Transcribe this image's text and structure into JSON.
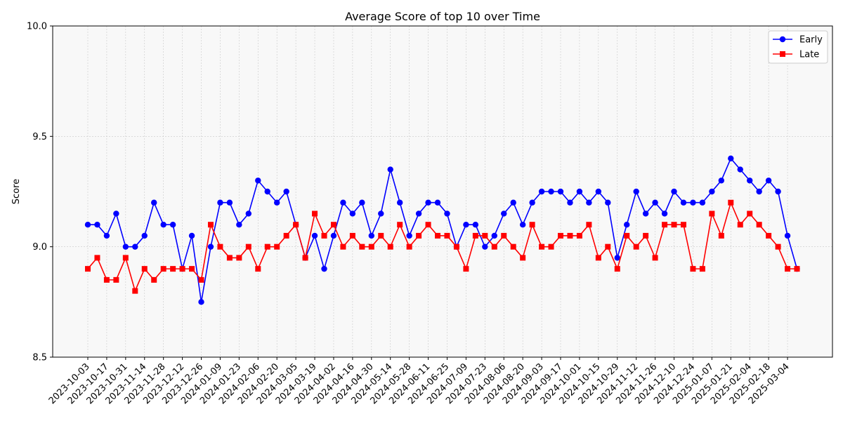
{
  "chart_data": {
    "type": "line",
    "title": "Average Score of top 10 over Time",
    "xlabel": "",
    "ylabel": "Score",
    "ylim": [
      8.5,
      10.0
    ],
    "yticks": [
      "8.5",
      "9.0",
      "9.5",
      "10.0"
    ],
    "grid": true,
    "legend_position": "top-right",
    "x": [
      "2023-10-03",
      "2023-10-10",
      "2023-10-17",
      "2023-10-24",
      "2023-10-31",
      "2023-11-07",
      "2023-11-14",
      "2023-11-21",
      "2023-11-28",
      "2023-12-05",
      "2023-12-12",
      "2023-12-19",
      "2023-12-26",
      "2024-01-02",
      "2024-01-09",
      "2024-01-16",
      "2024-01-23",
      "2024-01-30",
      "2024-02-06",
      "2024-02-13",
      "2024-02-20",
      "2024-02-27",
      "2024-03-05",
      "2024-03-12",
      "2024-03-19",
      "2024-03-26",
      "2024-04-02",
      "2024-04-09",
      "2024-04-16",
      "2024-04-23",
      "2024-04-30",
      "2024-05-07",
      "2024-05-14",
      "2024-05-21",
      "2024-05-28",
      "2024-06-04",
      "2024-06-11",
      "2024-06-18",
      "2024-06-25",
      "2024-07-02",
      "2024-07-09",
      "2024-07-16",
      "2024-07-23",
      "2024-07-30",
      "2024-08-06",
      "2024-08-13",
      "2024-08-20",
      "2024-08-27",
      "2024-09-03",
      "2024-09-10",
      "2024-09-17",
      "2024-09-24",
      "2024-10-01",
      "2024-10-08",
      "2024-10-15",
      "2024-10-22",
      "2024-10-29",
      "2024-11-05",
      "2024-11-12",
      "2024-11-19",
      "2024-11-26",
      "2024-12-03",
      "2024-12-10",
      "2024-12-17",
      "2024-12-24",
      "2024-12-31",
      "2025-01-07",
      "2025-01-14",
      "2025-01-21",
      "2025-01-28",
      "2025-02-04",
      "2025-02-11",
      "2025-02-18",
      "2025-02-25",
      "2025-03-04",
      "2025-03-11"
    ],
    "xtick_labels": [
      "2023-10-03",
      "2023-10-17",
      "2023-10-31",
      "2023-11-14",
      "2023-11-28",
      "2023-12-12",
      "2023-12-26",
      "2024-01-09",
      "2024-01-23",
      "2024-02-06",
      "2024-02-20",
      "2024-03-05",
      "2024-03-19",
      "2024-04-02",
      "2024-04-16",
      "2024-04-30",
      "2024-05-14",
      "2024-05-28",
      "2024-06-11",
      "2024-06-25",
      "2024-07-09",
      "2024-07-23",
      "2024-08-06",
      "2024-08-20",
      "2024-09-03",
      "2024-09-17",
      "2024-10-01",
      "2024-10-15",
      "2024-10-29",
      "2024-11-12",
      "2024-11-26",
      "2024-12-10",
      "2024-12-24",
      "2025-01-07",
      "2025-01-21",
      "2025-02-04",
      "2025-02-18",
      "2025-03-04"
    ],
    "series": [
      {
        "name": "Early",
        "color": "#0000ff",
        "marker": "circle",
        "values": [
          9.1,
          9.1,
          9.05,
          9.15,
          9.0,
          9.0,
          9.05,
          9.2,
          9.1,
          9.1,
          8.9,
          9.05,
          8.75,
          9.0,
          9.2,
          9.2,
          9.1,
          9.15,
          9.3,
          9.25,
          9.2,
          9.25,
          9.1,
          8.95,
          9.05,
          8.9,
          9.05,
          9.2,
          9.15,
          9.2,
          9.05,
          9.15,
          9.35,
          9.2,
          9.05,
          9.15,
          9.2,
          9.2,
          9.15,
          9.0,
          9.1,
          9.1,
          9.0,
          9.05,
          9.15,
          9.2,
          9.1,
          9.2,
          9.25,
          9.25,
          9.25,
          9.2,
          9.25,
          9.2,
          9.25,
          9.2,
          8.95,
          9.1,
          9.25,
          9.15,
          9.2,
          9.15,
          9.25,
          9.2,
          9.2,
          9.2,
          9.25,
          9.3,
          9.4,
          9.35,
          9.3,
          9.25,
          9.3,
          9.25,
          9.05,
          8.9
        ]
      },
      {
        "name": "Late",
        "color": "#ff0000",
        "marker": "square",
        "values": [
          8.9,
          8.95,
          8.85,
          8.85,
          8.95,
          8.8,
          8.9,
          8.85,
          8.9,
          8.9,
          8.9,
          8.9,
          8.85,
          9.1,
          9.0,
          8.95,
          8.95,
          9.0,
          8.9,
          9.0,
          9.0,
          9.05,
          9.1,
          8.95,
          9.15,
          9.05,
          9.1,
          9.0,
          9.05,
          9.0,
          9.0,
          9.05,
          9.0,
          9.1,
          9.0,
          9.05,
          9.1,
          9.05,
          9.05,
          9.0,
          8.9,
          9.05,
          9.05,
          9.0,
          9.05,
          9.0,
          8.95,
          9.1,
          9.0,
          9.0,
          9.05,
          9.05,
          9.05,
          9.1,
          8.95,
          9.0,
          8.9,
          9.05,
          9.0,
          9.05,
          8.95,
          9.1,
          9.1,
          9.1,
          8.9,
          8.9,
          9.15,
          9.05,
          9.2,
          9.1,
          9.15,
          9.1,
          9.05,
          9.0,
          8.9,
          8.9
        ]
      }
    ]
  }
}
